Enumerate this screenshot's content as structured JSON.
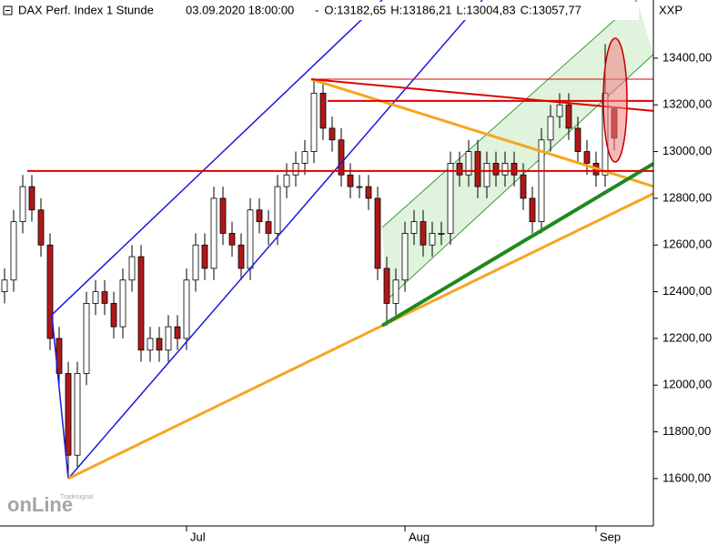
{
  "chart_data": {
    "type": "candlestick",
    "title": "DAX Perf. Index 1 Stunde",
    "datetime": "03.09.2020 18:00:00",
    "ohlc_labels": [
      {
        "text": "O:13182,65",
        "color": "#e00000"
      },
      {
        "text": "H:13186,21",
        "color": "#000000"
      },
      {
        "text": "L:13004,83",
        "color": "#000000"
      },
      {
        "text": "C:13057,77",
        "color": "#e00000"
      }
    ],
    "separator": "-",
    "symbol": "XXP",
    "watermark": [
      "Tradesignal",
      "onLine"
    ],
    "categories": [
      null,
      null,
      null,
      null,
      null,
      null,
      null,
      null,
      null,
      null,
      null,
      null,
      null,
      null,
      null,
      null,
      null,
      null,
      null,
      null,
      "Jul",
      null,
      null,
      null,
      null,
      null,
      null,
      null,
      null,
      null,
      null,
      null,
      null,
      null,
      null,
      null,
      null,
      null,
      null,
      null,
      null,
      null,
      null,
      null,
      "Aug",
      null,
      null,
      null,
      null,
      null,
      null,
      null,
      null,
      null,
      null,
      null,
      null,
      null,
      null,
      null,
      null,
      null,
      null,
      null,
      null,
      "Sep",
      null,
      null
    ],
    "open": [
      12400,
      12450,
      12700,
      12850,
      12750,
      12600,
      12200,
      12050,
      11700,
      12050,
      12350,
      12400,
      12350,
      12250,
      12450,
      12550,
      12150,
      12200,
      12150,
      12250,
      12200,
      12450,
      12600,
      12500,
      12800,
      12650,
      12600,
      12500,
      12750,
      12700,
      12650,
      12850,
      12900,
      12950,
      13000,
      13250,
      13100,
      13050,
      12900,
      12850,
      12850,
      12800,
      12500,
      12350,
      12450,
      12650,
      12700,
      12600,
      12650,
      12650,
      12950,
      12900,
      13000,
      12850,
      12950,
      12900,
      12950,
      12900,
      12800,
      12700,
      13050,
      13150,
      13200,
      13100,
      13000,
      12950,
      12900,
      13182.65
    ],
    "high": [
      12500,
      12750,
      12900,
      12900,
      12800,
      12650,
      12250,
      12100,
      12100,
      12400,
      12450,
      12450,
      12400,
      12500,
      12600,
      12600,
      12250,
      12250,
      12300,
      12300,
      12500,
      12650,
      12650,
      12850,
      12850,
      12700,
      12650,
      12800,
      12800,
      12750,
      12900,
      12950,
      13000,
      13050,
      13310,
      13300,
      13150,
      13100,
      12950,
      12900,
      12900,
      12850,
      12550,
      12500,
      12700,
      12750,
      12750,
      12700,
      12700,
      13000,
      13000,
      13050,
      13050,
      13000,
      13000,
      13000,
      13000,
      12950,
      12850,
      13100,
      13200,
      13250,
      13250,
      13150,
      13050,
      13000,
      13460,
      13186.21
    ],
    "low": [
      12350,
      12400,
      12650,
      12700,
      12550,
      12150,
      12000,
      11600,
      11650,
      12000,
      12300,
      12300,
      12200,
      12200,
      12400,
      12100,
      12100,
      12100,
      12100,
      12150,
      12150,
      12400,
      12450,
      12450,
      12600,
      12550,
      12450,
      12450,
      12650,
      12600,
      12600,
      12800,
      12850,
      12900,
      12950,
      13050,
      13000,
      12850,
      12800,
      12800,
      12750,
      12450,
      12255,
      12300,
      12400,
      12600,
      12550,
      12550,
      12600,
      12600,
      12850,
      12850,
      12800,
      12800,
      12850,
      12850,
      12850,
      12750,
      12650,
      12650,
      13000,
      13100,
      13050,
      12950,
      12900,
      12850,
      12850,
      13004.83
    ],
    "close": [
      12450,
      12700,
      12850,
      12750,
      12600,
      12200,
      12050,
      11700,
      12050,
      12350,
      12400,
      12350,
      12250,
      12450,
      12550,
      12150,
      12200,
      12150,
      12250,
      12200,
      12450,
      12600,
      12500,
      12800,
      12650,
      12600,
      12500,
      12750,
      12700,
      12650,
      12850,
      12900,
      12950,
      13000,
      13250,
      13100,
      13050,
      12900,
      12850,
      12850,
      12800,
      12500,
      12350,
      12450,
      12650,
      12700,
      12600,
      12650,
      12650,
      12950,
      12900,
      13000,
      12850,
      12950,
      12900,
      12950,
      12900,
      12800,
      12700,
      13050,
      13150,
      13200,
      13100,
      13000,
      12950,
      12900,
      13250,
      13057.77
    ],
    "up_color": "#ffffff",
    "down_color": "#b01818",
    "ylim": [
      11397,
      13649
    ],
    "yticks": [
      {
        "value": 11600,
        "label": "11600,00"
      },
      {
        "value": 11800,
        "label": "11800,00"
      },
      {
        "value": 12000,
        "label": "12000,00"
      },
      {
        "value": 12200,
        "label": "12200,00"
      },
      {
        "value": 12400,
        "label": "12400,00"
      },
      {
        "value": 12600,
        "label": "12600,00"
      },
      {
        "value": 12800,
        "label": "12800,00"
      },
      {
        "value": 13000,
        "label": "13000,00"
      },
      {
        "value": 13200,
        "label": "13200,00"
      },
      {
        "value": 13400,
        "label": "13400,00"
      }
    ],
    "grid": false,
    "channel": {
      "color": "#3a9a3a",
      "fill": "#d8f0d4",
      "upper": [
        [
          41.5,
          12675
        ],
        [
          69.5,
          13649
        ]
      ],
      "lower": [
        [
          42,
          12364
        ],
        [
          71.3,
          13416
        ]
      ]
    },
    "trendlines": [
      {
        "color": "#1a1adc",
        "width": 1.5,
        "points": [
          [
            5.2,
            12301
          ],
          [
            41.5,
            13649
          ]
        ]
      },
      {
        "color": "#1a1adc",
        "width": 1.5,
        "points": [
          [
            7,
            11600
          ],
          [
            52.5,
            13649
          ]
        ]
      },
      {
        "color": "#1a1adc",
        "width": 1.5,
        "points": [
          [
            5.2,
            12301
          ],
          [
            7,
            11600
          ]
        ]
      },
      {
        "color": "#f5a623",
        "width": 3,
        "points": [
          [
            7,
            11600
          ],
          [
            71.3,
            12820
          ]
        ]
      },
      {
        "color": "#f5a623",
        "width": 3,
        "points": [
          [
            33.7,
            13310
          ],
          [
            71.3,
            12851
          ]
        ]
      },
      {
        "color": "#1e8a1e",
        "width": 4,
        "points": [
          [
            41.5,
            12255
          ],
          [
            71.3,
            12948
          ]
        ]
      },
      {
        "color": "#e00000",
        "width": 2,
        "points": [
          [
            2.5,
            12917
          ],
          [
            71.3,
            12917
          ]
        ]
      },
      {
        "color": "#e00000",
        "width": 2,
        "points": [
          [
            35.5,
            13217
          ],
          [
            71.3,
            13217
          ]
        ]
      },
      {
        "color": "#e00000",
        "width": 1,
        "points": [
          [
            33.7,
            13310
          ],
          [
            71.3,
            13310
          ]
        ]
      },
      {
        "color": "#e00000",
        "width": 2,
        "points": [
          [
            33.7,
            13310
          ],
          [
            71.3,
            13174
          ]
        ]
      }
    ]
  }
}
